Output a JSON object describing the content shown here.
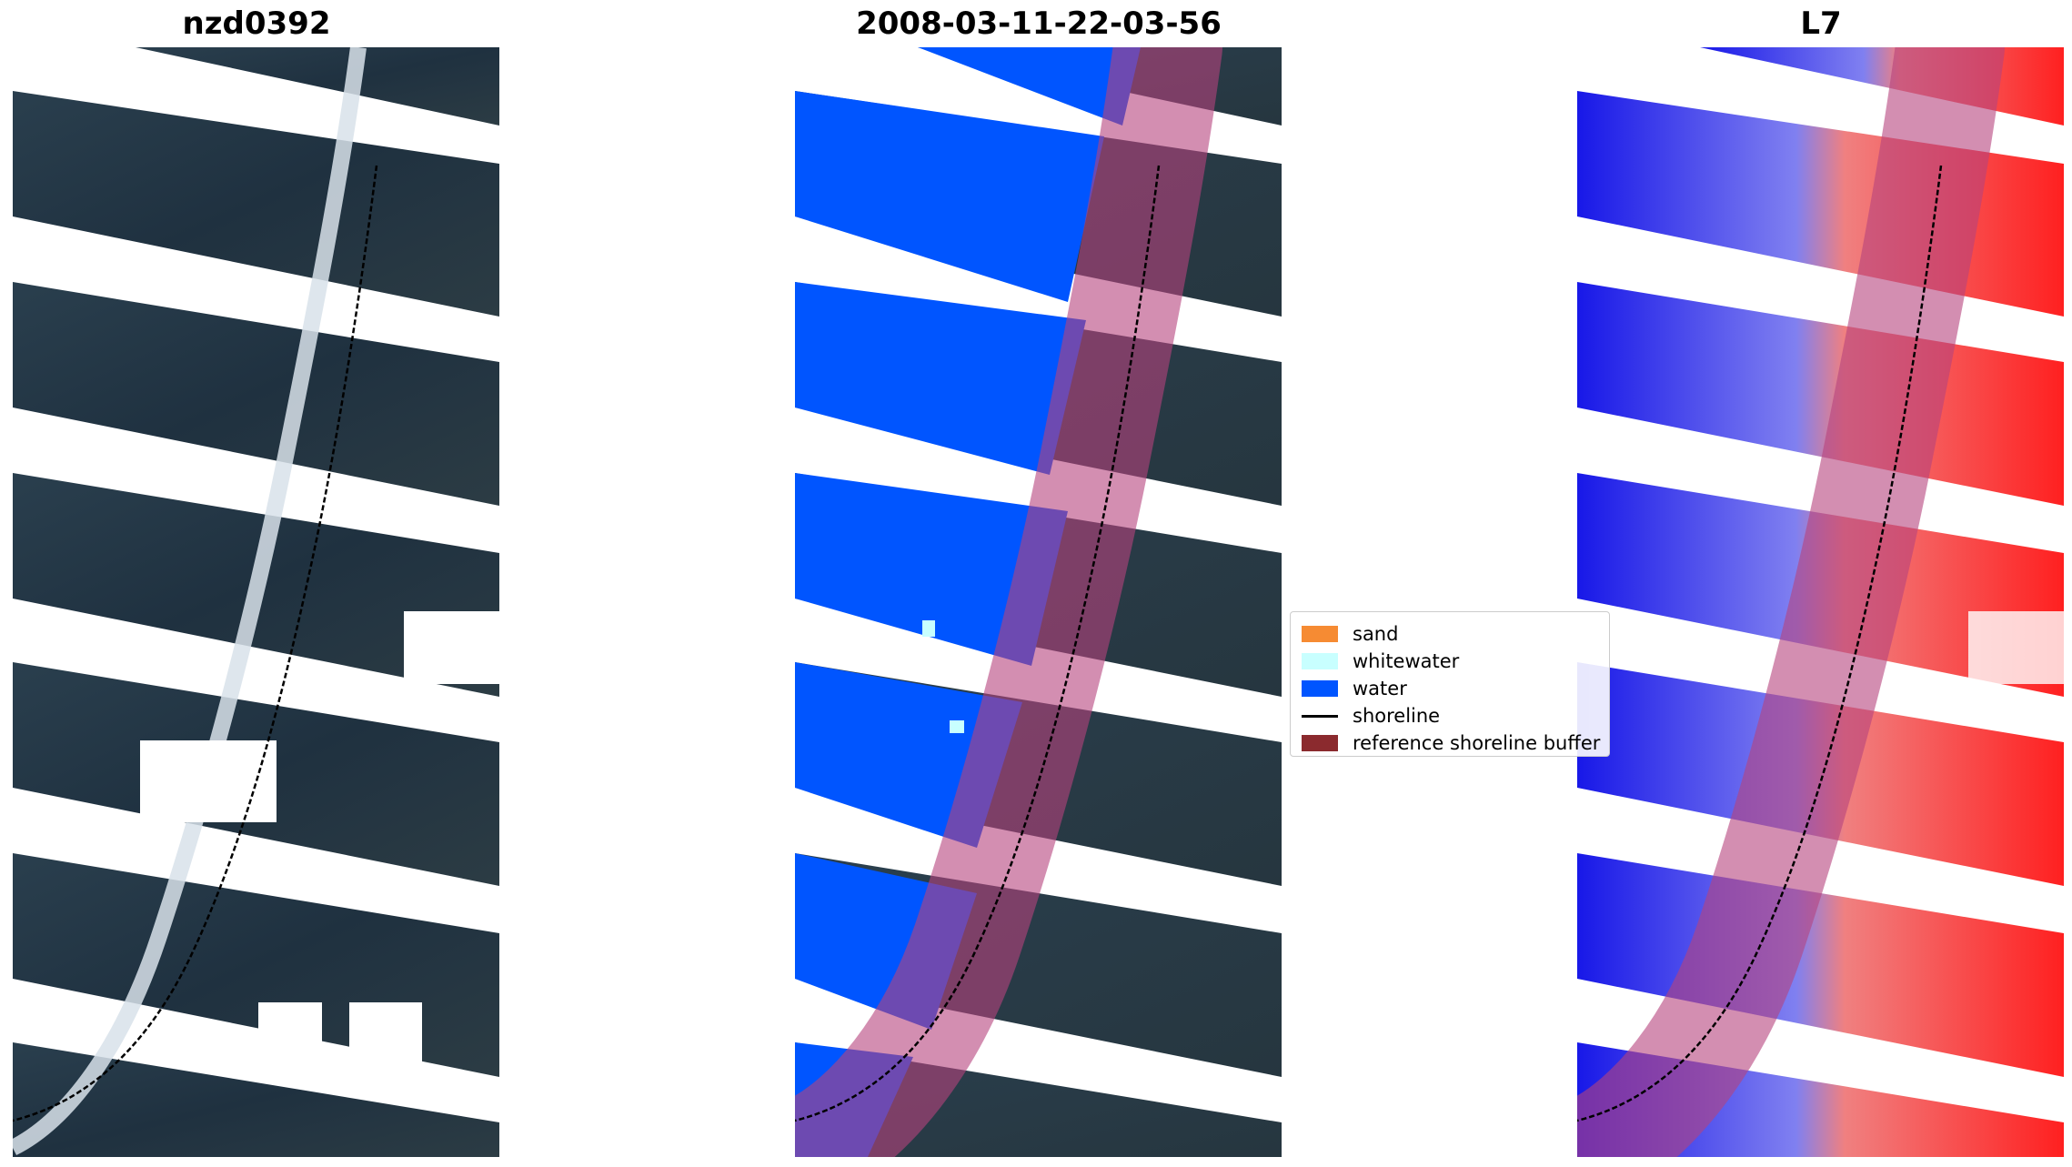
{
  "panels": {
    "left": {
      "title": "nzd0392"
    },
    "middle": {
      "title": "2008-03-11-22-03-56"
    },
    "right": {
      "title": "L7"
    }
  },
  "legend": {
    "items": [
      {
        "label": "sand",
        "color": "#f68b33"
      },
      {
        "label": "whitewater",
        "color": "#c8ffff"
      },
      {
        "label": "water",
        "color": "#0055ff"
      },
      {
        "label": "shoreline",
        "color": "#000000"
      },
      {
        "label": "reference shoreline buffer",
        "color": "#8b2a2e"
      }
    ]
  }
}
